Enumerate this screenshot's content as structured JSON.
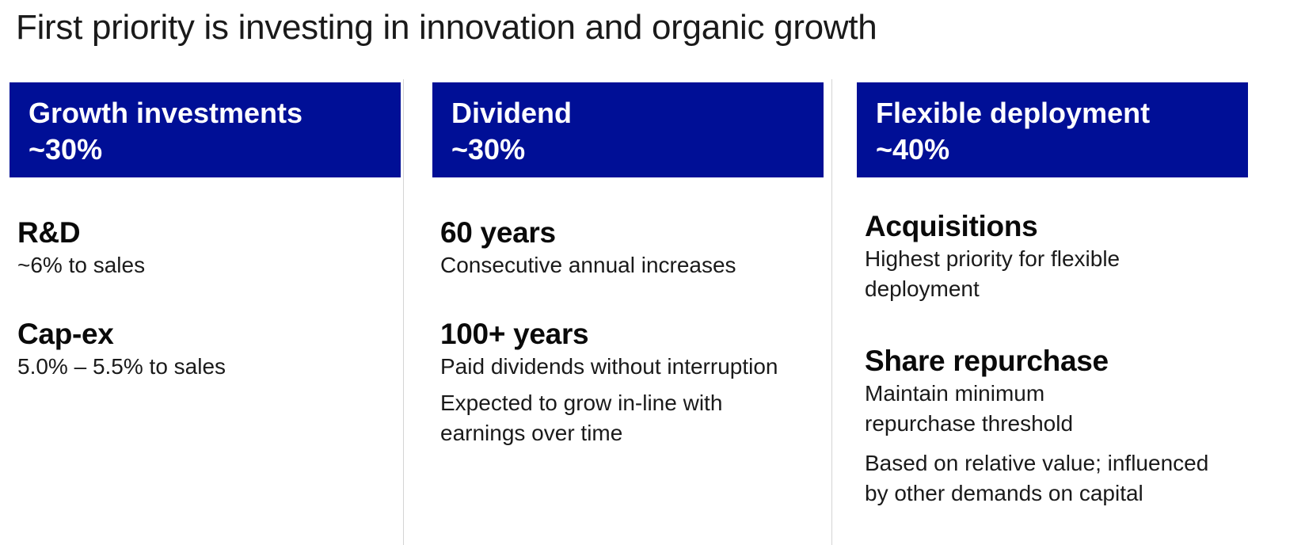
{
  "title": "First priority is investing in innovation and organic growth",
  "colors": {
    "header_bg": "#000f96",
    "header_text": "#ffffff",
    "divider": "#d4d4d4"
  },
  "columns": [
    {
      "header": {
        "title": "Growth investments",
        "share": "~30%"
      },
      "items": [
        {
          "title": "R&D",
          "text": "~6% to sales"
        },
        {
          "title": "Cap-ex",
          "text": "5.0% – 5.5% to sales"
        }
      ]
    },
    {
      "header": {
        "title": "Dividend",
        "share": "~30%"
      },
      "items": [
        {
          "title": "60 years",
          "text": "Consecutive annual increases"
        },
        {
          "title": "100+ years",
          "text": "Paid dividends without interruption"
        }
      ],
      "note": "Expected to grow in-line with earnings over time"
    },
    {
      "header": {
        "title": "Flexible deployment",
        "share": "~40%"
      },
      "items": [
        {
          "title": "Acquisitions",
          "text": "Highest priority for flexible deployment"
        },
        {
          "title": "Share repurchase",
          "text": "Maintain minimum repurchase threshold"
        }
      ],
      "note": "Based on relative value; influenced by other demands on capital"
    }
  ]
}
